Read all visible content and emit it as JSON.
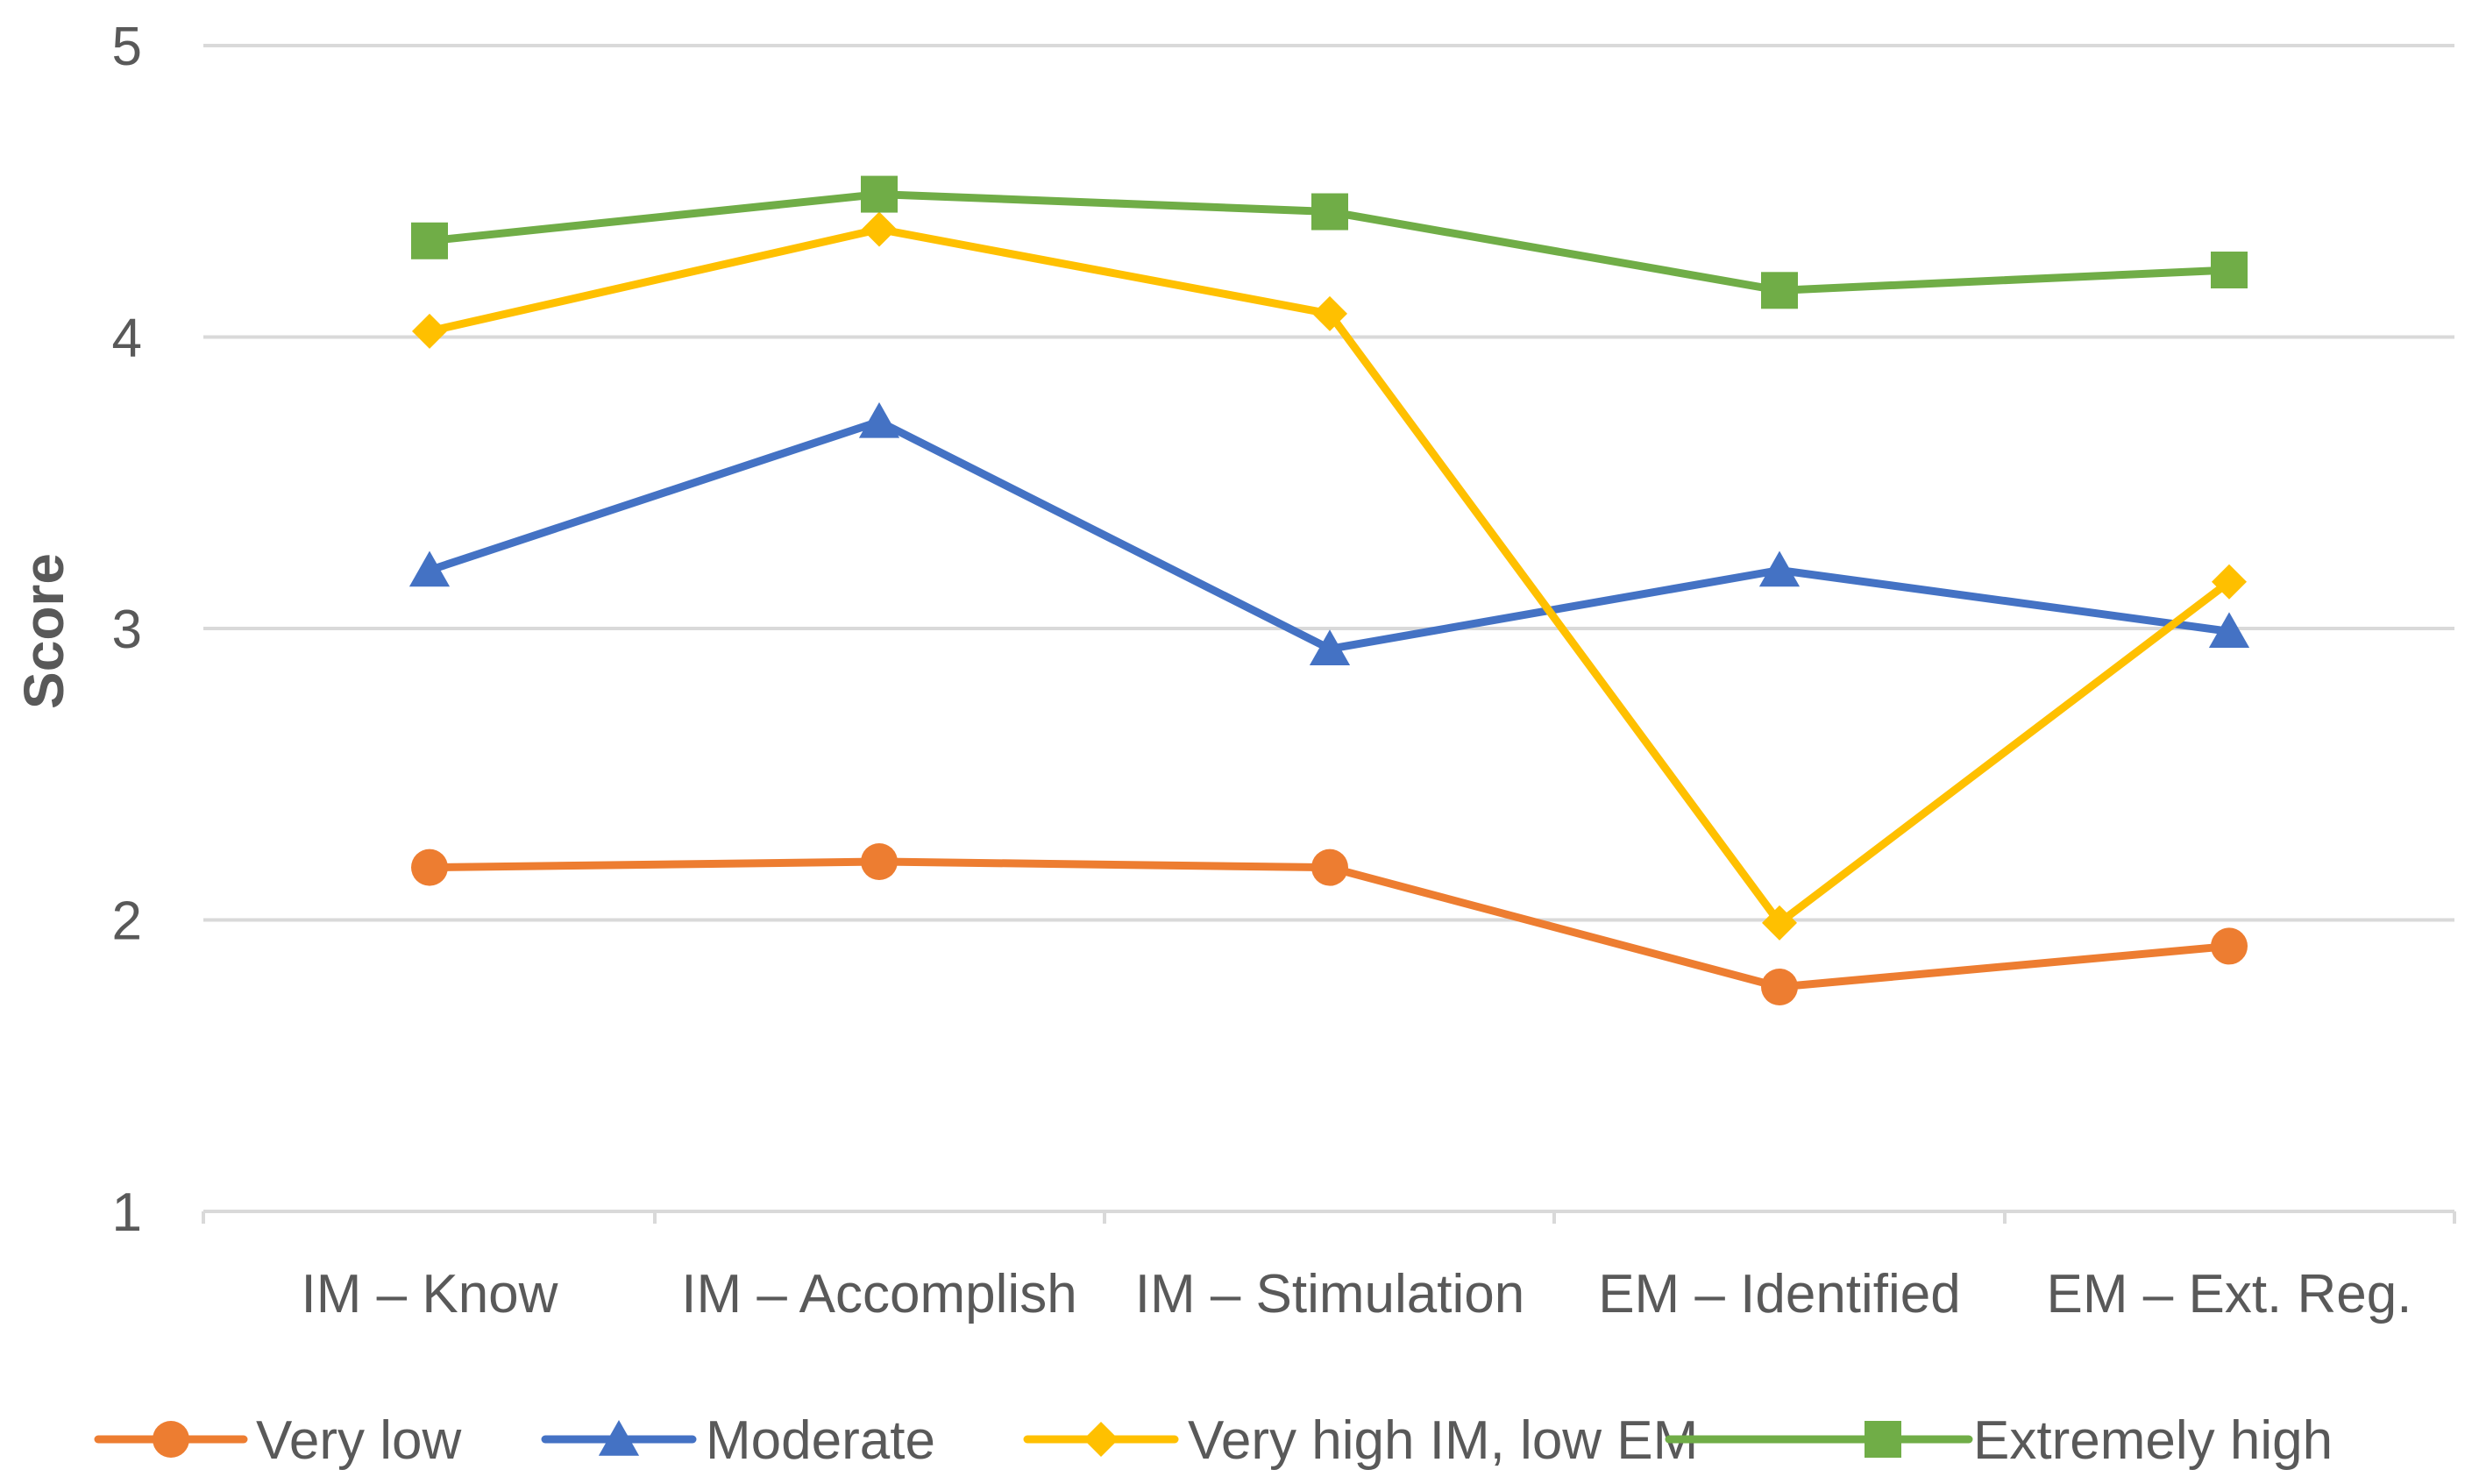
{
  "chart_data": {
    "type": "line",
    "title": "",
    "xlabel": "",
    "ylabel": "Score",
    "ylim": [
      1,
      5
    ],
    "yticks": [
      1,
      2,
      3,
      4,
      5
    ],
    "categories": [
      "IM – Know",
      "IM – Accomplish",
      "IM – Stimulation",
      "EM – Identified",
      "EM – Ext. Reg."
    ],
    "grid": "horizontal",
    "legend_position": "bottom",
    "series": [
      {
        "name": "Very low",
        "color": "#ED7D31",
        "marker": "circle",
        "values": [
          2.18,
          2.2,
          2.18,
          1.77,
          1.91
        ]
      },
      {
        "name": "Moderate",
        "color": "#4472C4",
        "marker": "triangle",
        "values": [
          3.2,
          3.71,
          2.93,
          3.2,
          2.99
        ]
      },
      {
        "name": "Very high IM, low EM",
        "color": "#FFC000",
        "marker": "diamond",
        "values": [
          4.02,
          4.37,
          4.08,
          1.99,
          3.16
        ]
      },
      {
        "name": "Extremely high",
        "color": "#70AD47",
        "marker": "square",
        "values": [
          4.33,
          4.49,
          4.43,
          4.16,
          4.23
        ]
      }
    ]
  }
}
